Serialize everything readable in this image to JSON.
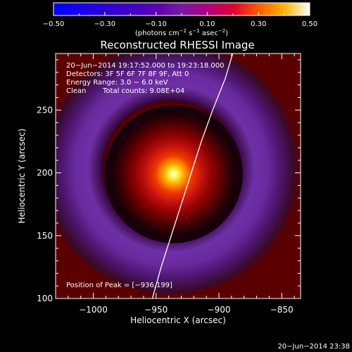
{
  "chart_data": {
    "type": "heatmap",
    "title": "Reconstructed RHESSI Image",
    "xlabel": "Heliocentric X (arcsec)",
    "ylabel": "Heliocentric Y (arcsec)",
    "xlim": [
      -1030,
      -835
    ],
    "ylim": [
      100,
      295
    ],
    "xticks": [
      -1000,
      -950,
      -900,
      -850
    ],
    "xtick_labels": [
      "−1000",
      "−950",
      "−900",
      "−850"
    ],
    "yticks": [
      100,
      150,
      200,
      250
    ],
    "ytick_labels": [
      "100",
      "150",
      "200",
      "250"
    ],
    "colorbar": {
      "range": [
        -0.5,
        0.5
      ],
      "ticks": [
        -0.5,
        -0.3,
        -0.1,
        0.1,
        0.3,
        0.5
      ],
      "tick_labels": [
        "−0.50",
        "−0.30",
        "−0.10",
        "0.10",
        "0.30",
        "0.50"
      ],
      "unit_prefix": "(photons cm",
      "unit_sup1": "−2",
      "unit_mid1": " s",
      "unit_sup2": "−1",
      "unit_mid2": " asec",
      "unit_sup3": "−2",
      "unit_suffix": ")"
    },
    "annotations": {
      "time_range": "20−Jun−2014 19:17:52.000 to 19:23:18.000",
      "detectors": "Detectors: 3F 5F 6F 7F 8F 9F, Att 0",
      "energy_range": "Energy Range: 3.0 − 6.0 keV",
      "clean_label": "Clean",
      "total_counts": "Total counts: 9.08E+04",
      "peak": "Position of Peak = [−936,199]"
    },
    "peak": [
      -936,
      199
    ],
    "limb": [
      [
        -953,
        100
      ],
      [
        -946,
        125
      ],
      [
        -938,
        150
      ],
      [
        -930,
        175
      ],
      [
        -922,
        200
      ],
      [
        -914,
        225
      ],
      [
        -905,
        250
      ],
      [
        -895,
        275
      ],
      [
        -889,
        295
      ]
    ]
  },
  "footer": {
    "timestamp": "20−Jun−2014 23:38"
  }
}
